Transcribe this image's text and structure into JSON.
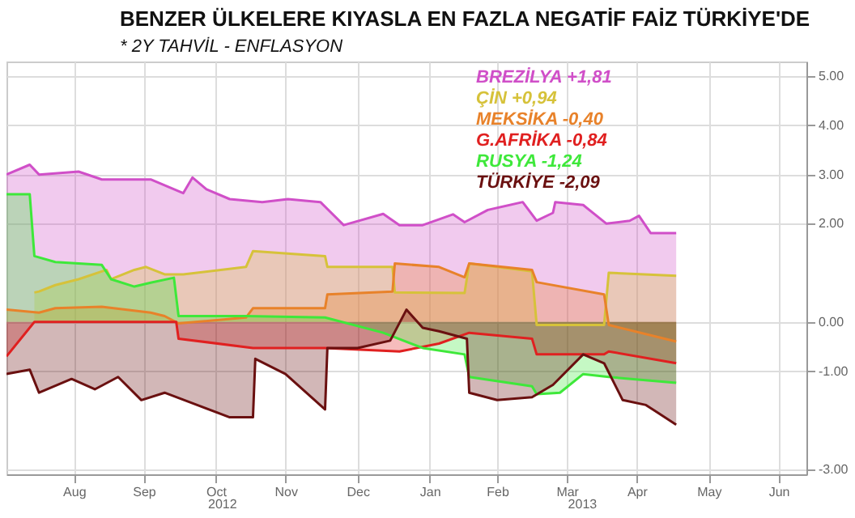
{
  "chart_data": {
    "type": "area",
    "title": "BENZER ÜLKELERE KIYASLA EN FAZLA NEGATİF FAİZ TÜRKİYE'DE",
    "subtitle": "* 2Y TAHVİL - ENFLASYON",
    "xlim": [
      "2012-07-18",
      "2013-06-27"
    ],
    "xticks": [
      {
        "value": "2012-08-16",
        "label": "Aug"
      },
      {
        "value": "2012-09-15",
        "label": "Sep"
      },
      {
        "value": "2012-10-16",
        "label": "Oct"
      },
      {
        "value": "2012-11-15",
        "label": "Nov"
      },
      {
        "value": "2012-12-16",
        "label": "Dec"
      },
      {
        "value": "2013-01-16",
        "label": "Jan"
      },
      {
        "value": "2013-02-14",
        "label": "Feb"
      },
      {
        "value": "2013-03-16",
        "label": "Mar"
      },
      {
        "value": "2013-04-15",
        "label": "Apr"
      },
      {
        "value": "2013-05-16",
        "label": "May"
      },
      {
        "value": "2013-06-15",
        "label": "Jun"
      }
    ],
    "ylim": [
      -3.1,
      5.3
    ],
    "yticks": [
      {
        "value": -3,
        "label": "-3.00"
      },
      {
        "value": -1,
        "label": "-1.00"
      },
      {
        "value": 0,
        "label": "0.00"
      },
      {
        "value": 2,
        "label": "2.00"
      },
      {
        "value": 3,
        "label": "3.00"
      },
      {
        "value": 4,
        "label": "4.00"
      },
      {
        "value": 5,
        "label": "5.00"
      }
    ],
    "grid": true,
    "legend": "top",
    "annotations": [
      "2012",
      "2013"
    ],
    "series": [
      {
        "name": "BREZİLYA +1,81",
        "color": "#d04fc8",
        "x": [
          "2012-07-18",
          "2012-07-28",
          "2012-08-01",
          "2012-08-18",
          "2012-08-28",
          "2012-09-18",
          "2012-10-02",
          "2012-10-06",
          "2012-10-12",
          "2012-10-22",
          "2012-11-05",
          "2012-11-16",
          "2012-11-30",
          "2012-12-10",
          "2012-12-27",
          "2013-01-03",
          "2013-01-13",
          "2013-01-26",
          "2013-01-31",
          "2013-02-10",
          "2013-02-25",
          "2013-03-03",
          "2013-03-10",
          "2013-03-11",
          "2013-03-23",
          "2013-04-02",
          "2013-04-12",
          "2013-04-16",
          "2013-04-21",
          "2013-05-02"
        ],
        "values": [
          3.0,
          3.2,
          3.0,
          3.06,
          2.9,
          2.9,
          2.62,
          2.94,
          2.7,
          2.5,
          2.44,
          2.5,
          2.44,
          1.97,
          2.2,
          1.97,
          1.97,
          2.19,
          2.03,
          2.28,
          2.44,
          2.06,
          2.22,
          2.44,
          2.38,
          2.0,
          2.06,
          2.16,
          1.81,
          1.81
        ]
      },
      {
        "name": "ÇİN +0,94",
        "color": "#d6c23a",
        "x": [
          "2012-07-30",
          "2012-08-01",
          "2012-08-08",
          "2012-08-18",
          "2012-08-30",
          "2012-09-01",
          "2012-09-11",
          "2012-09-16",
          "2012-09-24",
          "2012-10-02",
          "2012-10-29",
          "2012-11-01",
          "2012-12-02",
          "2012-12-03",
          "2012-12-31",
          "2013-01-01",
          "2013-01-31",
          "2013-02-02",
          "2013-03-01",
          "2013-03-03",
          "2013-04-01",
          "2013-04-03",
          "2013-05-02"
        ],
        "values": [
          0.6,
          0.62,
          0.75,
          0.87,
          1.06,
          0.87,
          1.06,
          1.12,
          0.97,
          0.97,
          1.12,
          1.44,
          1.34,
          1.12,
          1.12,
          0.6,
          0.59,
          1.19,
          1.03,
          -0.06,
          -0.06,
          1.0,
          0.94
        ]
      },
      {
        "name": "MEKSİKA -0,40",
        "color": "#e8822a",
        "x": [
          "2012-07-18",
          "2012-08-01",
          "2012-08-08",
          "2012-08-28",
          "2012-09-18",
          "2012-09-24",
          "2012-09-30",
          "2012-10-29",
          "2012-11-01",
          "2012-12-02",
          "2012-12-03",
          "2012-12-31",
          "2013-01-01",
          "2013-01-20",
          "2013-01-31",
          "2013-02-02",
          "2013-03-01",
          "2013-03-03",
          "2013-04-01",
          "2013-04-03",
          "2013-05-02"
        ],
        "values": [
          0.25,
          0.19,
          0.28,
          0.31,
          0.19,
          0.12,
          -0.03,
          0.09,
          0.28,
          0.28,
          0.56,
          0.62,
          1.19,
          1.12,
          0.91,
          1.19,
          1.06,
          0.81,
          0.56,
          -0.06,
          -0.4
        ]
      },
      {
        "name": "G.AFRİKA -0,84",
        "color": "#e02020",
        "x": [
          "2012-07-18",
          "2012-07-30",
          "2012-09-29",
          "2012-09-30",
          "2012-11-01",
          "2012-12-02",
          "2013-01-03",
          "2013-01-20",
          "2013-02-02",
          "2013-03-01",
          "2013-03-03",
          "2013-04-01",
          "2013-04-03",
          "2013-05-02"
        ],
        "values": [
          -0.7,
          0.0,
          0.0,
          -0.34,
          -0.53,
          -0.53,
          -0.6,
          -0.44,
          -0.22,
          -0.34,
          -0.66,
          -0.66,
          -0.6,
          -0.84
        ]
      },
      {
        "name": "RUSYA -1,24",
        "color": "#3ee83a",
        "x": [
          "2012-07-18",
          "2012-07-28",
          "2012-07-30",
          "2012-08-08",
          "2012-08-28",
          "2012-09-01",
          "2012-09-11",
          "2012-09-18",
          "2012-09-28",
          "2012-09-30",
          "2012-10-29",
          "2012-12-02",
          "2012-12-27",
          "2013-01-13",
          "2013-01-31",
          "2013-02-02",
          "2013-03-01",
          "2013-03-03",
          "2013-03-13",
          "2013-03-23",
          "2013-04-03",
          "2013-05-02"
        ],
        "values": [
          2.6,
          2.6,
          1.34,
          1.22,
          1.16,
          0.87,
          0.72,
          0.8,
          0.9,
          0.12,
          0.12,
          0.09,
          -0.22,
          -0.53,
          -0.66,
          -1.12,
          -1.31,
          -1.47,
          -1.44,
          -1.06,
          -1.12,
          -1.24
        ]
      },
      {
        "name": "TÜRKİYE -2,09",
        "color": "#6a1010",
        "x": [
          "2012-07-18",
          "2012-07-28",
          "2012-08-01",
          "2012-08-15",
          "2012-08-25",
          "2012-09-04",
          "2012-09-14",
          "2012-09-24",
          "2012-10-08",
          "2012-10-22",
          "2012-11-01",
          "2012-11-02",
          "2012-11-15",
          "2012-12-02",
          "2012-12-03",
          "2012-12-16",
          "2012-12-30",
          "2013-01-06",
          "2013-01-13",
          "2013-01-20",
          "2013-02-01",
          "2013-02-02",
          "2013-02-14",
          "2013-03-01",
          "2013-03-10",
          "2013-03-23",
          "2013-04-01",
          "2013-04-09",
          "2013-04-19",
          "2013-05-02"
        ],
        "values": [
          -1.06,
          -0.97,
          -1.44,
          -1.16,
          -1.37,
          -1.12,
          -1.59,
          -1.44,
          -1.69,
          -1.94,
          -1.94,
          -0.75,
          -1.06,
          -1.78,
          -0.53,
          -0.53,
          -0.38,
          0.25,
          -0.12,
          -0.19,
          -0.34,
          -1.44,
          -1.59,
          -1.53,
          -1.28,
          -0.66,
          -0.84,
          -1.59,
          -1.69,
          -2.09
        ]
      }
    ]
  }
}
